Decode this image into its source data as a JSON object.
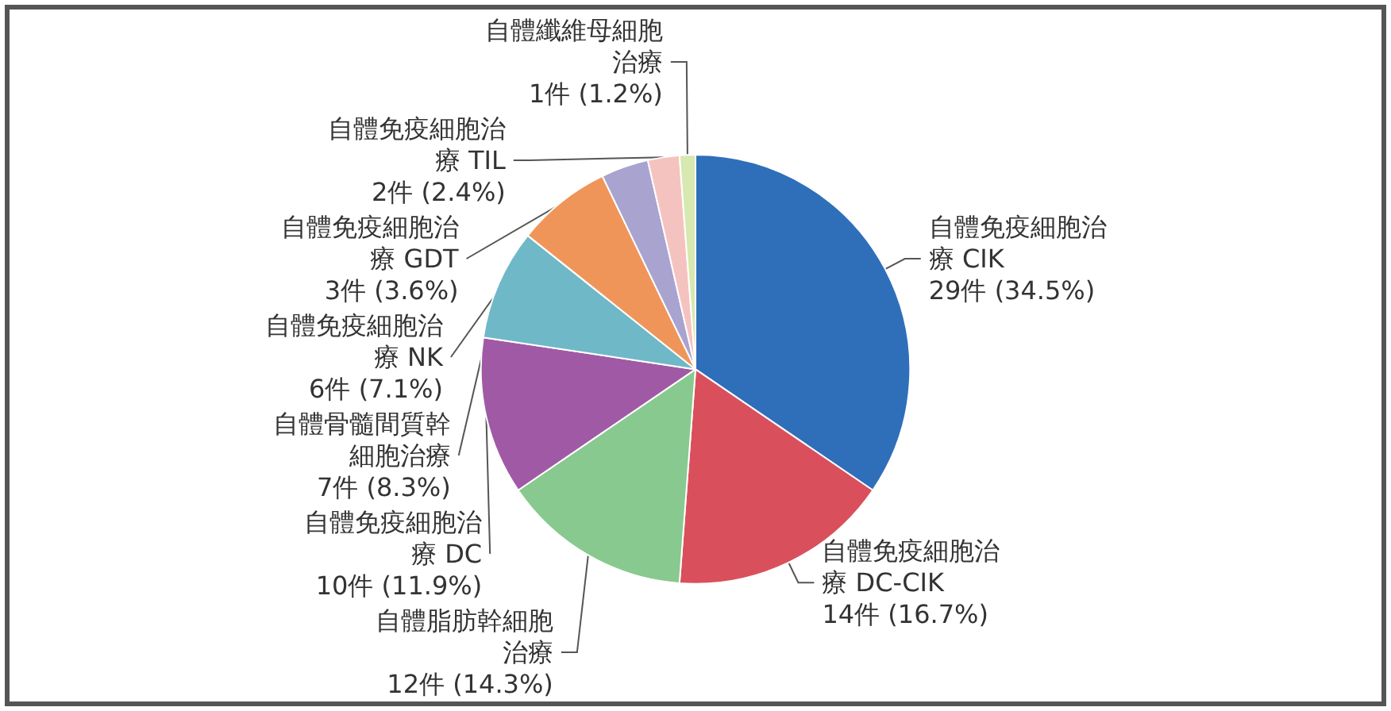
{
  "chart_data": {
    "type": "pie",
    "categories": [
      "自體免疫細胞治療 CIK",
      "自體免疫細胞治療 DC-CIK",
      "自體脂肪幹細胞治療",
      "自體免疫細胞治療 DC",
      "自體骨髓間質幹細胞治療",
      "自體免疫細胞治療 NK",
      "自體免疫細胞治療 GDT",
      "自體免疫細胞治療 TIL",
      "自體纖維母細胞治療"
    ],
    "values": [
      29,
      14,
      12,
      10,
      7,
      6,
      3,
      2,
      1
    ],
    "value_labels": [
      "29件 (34.5%)",
      "14件 (16.7%)",
      "12件 (14.3%)",
      "10件 (11.9%)",
      "7件 (8.3%)",
      "6件 (7.1%)",
      "3件 (3.6%)",
      "2件 (2.4%)",
      "1件 (1.2%)"
    ],
    "colors": [
      "#2f6fba",
      "#d9505c",
      "#88c98f",
      "#a05aa5",
      "#6fb8c8",
      "#f0955a",
      "#a8a3cf",
      "#f5c3bf",
      "#d7e8b0"
    ],
    "legend": false
  }
}
